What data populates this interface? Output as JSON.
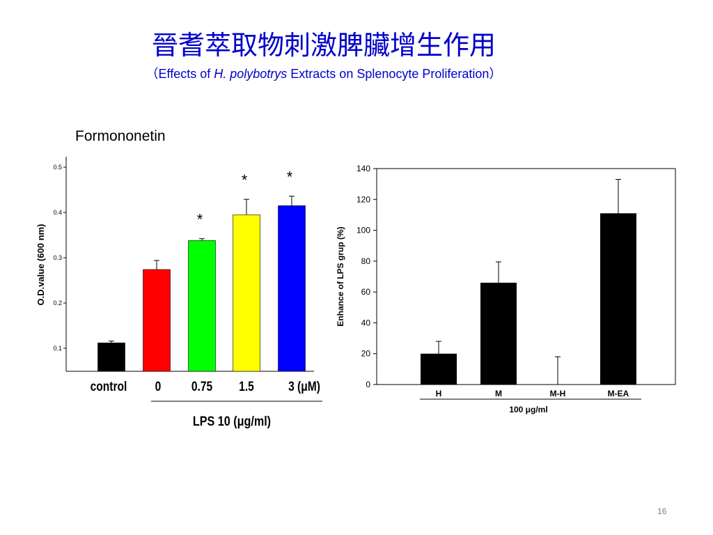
{
  "slide": {
    "title_zh": "晉耆萃取物刺激脾臟增生作用",
    "title_en": {
      "prefix": "（Effects of ",
      "species": "H. polybotrys",
      "suffix": " Extracts on Splenocyte Proliferation）"
    },
    "subtitle": "Formononetin",
    "page_number": "16"
  },
  "chart_data": [
    {
      "type": "bar",
      "ylabel": "O.D.value (600 nm)",
      "ylim": [
        0.07,
        0.53
      ],
      "yticks": [
        "0.1",
        "0.2",
        "0.3",
        "0.4",
        "0.5"
      ],
      "categories": [
        "control",
        "0",
        "0.75",
        "1.5",
        "3 (μM)"
      ],
      "values": [
        0.112,
        0.274,
        0.338,
        0.395,
        0.415
      ],
      "errors": [
        0.004,
        0.02,
        0.004,
        0.034,
        0.021
      ],
      "colors": [
        "#000000",
        "#ff0000",
        "#00ff00",
        "#ffff00",
        "#0000ff"
      ],
      "significance": [
        "",
        "",
        "*",
        "*",
        "*"
      ],
      "group_label": "LPS 10 (μg/ml)",
      "grid": false
    },
    {
      "type": "bar",
      "ylabel": "Enhance of LPS grup (%)",
      "ylim": [
        0,
        140
      ],
      "yticks": [
        "0",
        "20",
        "40",
        "60",
        "80",
        "100",
        "120",
        "140"
      ],
      "categories": [
        "H",
        "M",
        "M-H",
        "M-EA"
      ],
      "values": [
        20,
        66,
        0,
        111
      ],
      "errors": [
        8,
        13.5,
        18,
        22
      ],
      "colors": [
        "#000000",
        "#000000",
        "#000000",
        "#000000"
      ],
      "group_label": "100 μg/ml",
      "grid": false
    }
  ]
}
